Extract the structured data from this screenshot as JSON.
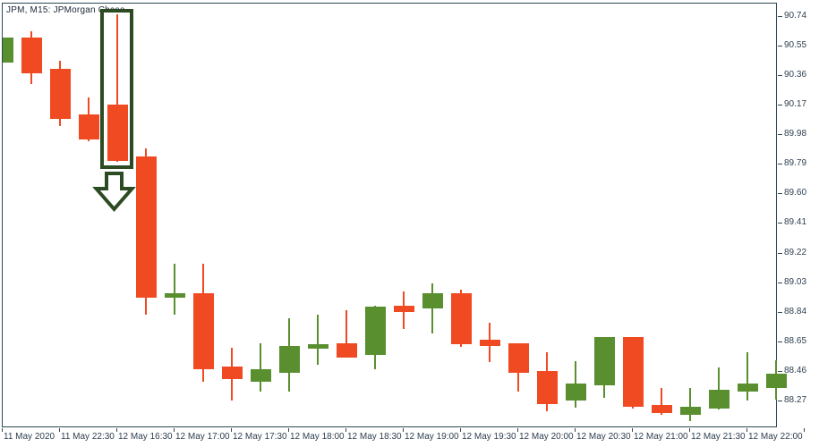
{
  "title": "JPM, M15: JPMorgan Chase",
  "colors": {
    "bull_green": "#5A8F30",
    "bear_red": "#F04A22",
    "frame": "#2E4754",
    "axis_text": "#2E3F50",
    "title_text": "#1B2838",
    "annotation_green": "#2D4B23",
    "background": "#FFFFFF"
  },
  "chart_data": {
    "type": "candlestick",
    "symbol": "JPM",
    "timeframe": "M15",
    "company": "JPMorgan Chase",
    "title": "JPM, M15: JPMorgan Chase",
    "grid": false,
    "price_axis_side": "right",
    "price_axis_ticks": [
      "90.74",
      "90.55",
      "90.36",
      "90.17",
      "89.98",
      "89.79",
      "89.60",
      "89.41",
      "89.22",
      "89.03",
      "88.84",
      "88.65",
      "88.46",
      "88.27"
    ],
    "ylim": [
      88.08,
      90.82
    ],
    "time_axis_ticks": [
      {
        "candle_index": 0,
        "label": "11 May 2020"
      },
      {
        "candle_index": 2,
        "label": "11 May 22:30"
      },
      {
        "candle_index": 4,
        "label": "12 May 16:30"
      },
      {
        "candle_index": 6,
        "label": "12 May 17:00"
      },
      {
        "candle_index": 8,
        "label": "12 May 17:30"
      },
      {
        "candle_index": 10,
        "label": "12 May 18:00"
      },
      {
        "candle_index": 12,
        "label": "12 May 18:30"
      },
      {
        "candle_index": 14,
        "label": "12 May 19:00"
      },
      {
        "candle_index": 16,
        "label": "12 May 19:30"
      },
      {
        "candle_index": 18,
        "label": "12 May 20:00"
      },
      {
        "candle_index": 20,
        "label": "12 May 20:30"
      },
      {
        "candle_index": 22,
        "label": "12 May 21:00"
      },
      {
        "candle_index": 24,
        "label": "12 May 21:30"
      },
      {
        "candle_index": 26,
        "label": "12 May 22:00"
      },
      {
        "candle_index": 28,
        "label": ""
      }
    ],
    "candles": [
      {
        "t": "11 May 22:00",
        "o": 90.44,
        "h": 90.6,
        "l": 90.44,
        "c": 90.6
      },
      {
        "t": "11 May 22:15",
        "o": 90.6,
        "h": 90.64,
        "l": 90.3,
        "c": 90.37
      },
      {
        "t": "11 May 22:30",
        "o": 90.4,
        "h": 90.45,
        "l": 90.03,
        "c": 90.08
      },
      {
        "t": "11 May 22:45",
        "o": 90.11,
        "h": 90.22,
        "l": 89.94,
        "c": 89.95
      },
      {
        "t": "12 May 16:30",
        "o": 90.17,
        "h": 90.75,
        "l": 89.8,
        "c": 89.81
      },
      {
        "t": "12 May 16:45",
        "o": 89.84,
        "h": 89.89,
        "l": 88.82,
        "c": 88.93
      },
      {
        "t": "12 May 17:00",
        "o": 88.93,
        "h": 89.15,
        "l": 88.82,
        "c": 88.96
      },
      {
        "t": "12 May 17:15",
        "o": 88.96,
        "h": 89.15,
        "l": 88.39,
        "c": 88.47
      },
      {
        "t": "12 May 17:30",
        "o": 88.49,
        "h": 88.61,
        "l": 88.27,
        "c": 88.41
      },
      {
        "t": "12 May 17:45",
        "o": 88.39,
        "h": 88.64,
        "l": 88.33,
        "c": 88.47
      },
      {
        "t": "12 May 18:00",
        "o": 88.45,
        "h": 88.8,
        "l": 88.33,
        "c": 88.62
      },
      {
        "t": "12 May 18:15",
        "o": 88.6,
        "h": 88.82,
        "l": 88.5,
        "c": 88.63
      },
      {
        "t": "12 May 18:30",
        "o": 88.64,
        "h": 88.85,
        "l": 88.55,
        "c": 88.55
      },
      {
        "t": "12 May 18:45",
        "o": 88.56,
        "h": 88.88,
        "l": 88.47,
        "c": 88.87
      },
      {
        "t": "12 May 19:00",
        "o": 88.88,
        "h": 88.97,
        "l": 88.73,
        "c": 88.84
      },
      {
        "t": "12 May 19:15",
        "o": 88.86,
        "h": 89.02,
        "l": 88.7,
        "c": 88.96
      },
      {
        "t": "12 May 19:30",
        "o": 88.96,
        "h": 88.98,
        "l": 88.61,
        "c": 88.63
      },
      {
        "t": "12 May 19:45",
        "o": 88.66,
        "h": 88.77,
        "l": 88.52,
        "c": 88.62
      },
      {
        "t": "12 May 20:00",
        "o": 88.64,
        "h": 88.64,
        "l": 88.33,
        "c": 88.45
      },
      {
        "t": "12 May 20:15",
        "o": 88.46,
        "h": 88.58,
        "l": 88.2,
        "c": 88.25
      },
      {
        "t": "12 May 20:30",
        "o": 88.27,
        "h": 88.52,
        "l": 88.22,
        "c": 88.38
      },
      {
        "t": "12 May 20:45",
        "o": 88.37,
        "h": 88.68,
        "l": 88.29,
        "c": 88.68
      },
      {
        "t": "12 May 21:00",
        "o": 88.68,
        "h": 88.68,
        "l": 88.22,
        "c": 88.23
      },
      {
        "t": "12 May 21:15",
        "o": 88.24,
        "h": 88.35,
        "l": 88.18,
        "c": 88.19
      },
      {
        "t": "12 May 21:30",
        "o": 88.18,
        "h": 88.35,
        "l": 88.14,
        "c": 88.23
      },
      {
        "t": "12 May 21:45",
        "o": 88.22,
        "h": 88.48,
        "l": 88.21,
        "c": 88.34
      },
      {
        "t": "12 May 22:00",
        "o": 88.33,
        "h": 88.58,
        "l": 88.27,
        "c": 88.38
      },
      {
        "t": "12 May 22:15",
        "o": 88.35,
        "h": 88.53,
        "l": 88.28,
        "c": 88.44
      }
    ],
    "annotation": {
      "type": "highlight",
      "shapes": [
        "rectangle",
        "down-arrow"
      ],
      "candle_index": 4,
      "color": "#2D4B23"
    }
  }
}
